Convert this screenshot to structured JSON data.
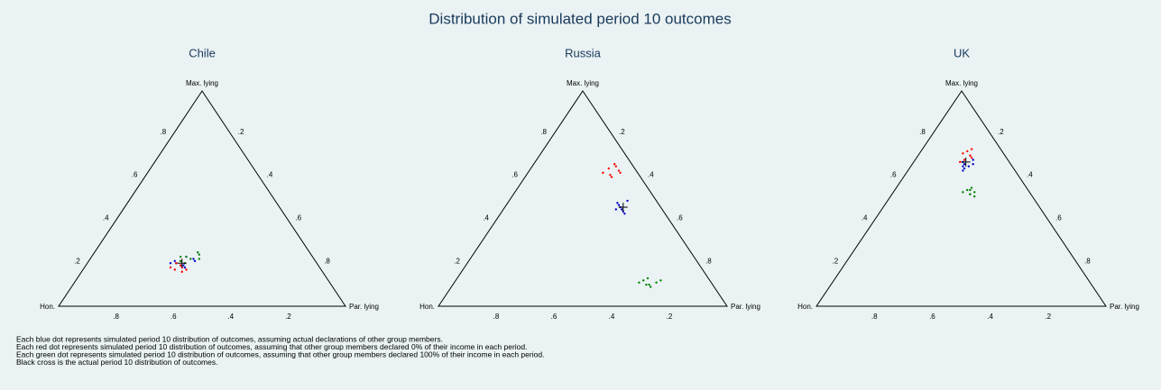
{
  "title": "Distribution of simulated period 10 outcomes",
  "vertex_labels": {
    "top": "Max. lying",
    "left": "Hon.",
    "right": "Par. lying"
  },
  "ticks": [
    {
      "value": 0.2,
      "label": ".2"
    },
    {
      "value": 0.4,
      "label": ".4"
    },
    {
      "value": 0.6,
      "label": ".6"
    },
    {
      "value": 0.8,
      "label": ".8"
    }
  ],
  "charts": [
    {
      "type": "ternary",
      "title": "Chile",
      "series": [
        {
          "color": "#0000cc",
          "par_lying": [
            0.3,
            0.34,
            0.36,
            0.31,
            0.33,
            0.35,
            0.29,
            0.37
          ],
          "max_lying": [
            0.21,
            0.19,
            0.22,
            0.2,
            0.23,
            0.18,
            0.2,
            0.21
          ]
        },
        {
          "color": "#ff0000",
          "par_lying": [
            0.32,
            0.34,
            0.31,
            0.35,
            0.33,
            0.3,
            0.36,
            0.32
          ],
          "max_lying": [
            0.17,
            0.18,
            0.2,
            0.16,
            0.19,
            0.18,
            0.17,
            0.21
          ]
        },
        {
          "color": "#008000",
          "par_lying": [
            0.33,
            0.35,
            0.37,
            0.32,
            0.36,
            0.34,
            0.38,
            0.31
          ],
          "max_lying": [
            0.23,
            0.22,
            0.24,
            0.21,
            0.25,
            0.2,
            0.22,
            0.23
          ]
        }
      ],
      "cross": {
        "par_lying": 0.33,
        "max_lying": 0.2
      }
    },
    {
      "type": "ternary",
      "title": "Russia",
      "series": [
        {
          "color": "#0000cc",
          "par_lying": [
            0.39,
            0.41,
            0.42,
            0.38,
            0.4,
            0.43,
            0.41,
            0.39
          ],
          "max_lying": [
            0.47,
            0.45,
            0.44,
            0.48,
            0.46,
            0.43,
            0.49,
            0.45
          ]
        },
        {
          "color": "#ff0000",
          "par_lying": [
            0.27,
            0.29,
            0.31,
            0.28,
            0.3,
            0.26,
            0.29,
            0.32
          ],
          "max_lying": [
            0.64,
            0.61,
            0.63,
            0.66,
            0.6,
            0.62,
            0.65,
            0.62
          ]
        },
        {
          "color": "#008000",
          "par_lying": [
            0.65,
            0.68,
            0.7,
            0.66,
            0.69,
            0.71,
            0.64,
            0.67
          ],
          "max_lying": [
            0.12,
            0.1,
            0.11,
            0.13,
            0.09,
            0.12,
            0.11,
            0.1
          ]
        }
      ],
      "cross": {
        "par_lying": 0.41,
        "max_lying": 0.46
      }
    },
    {
      "type": "ternary",
      "title": "UK",
      "series": [
        {
          "color": "#0000cc",
          "par_lying": [
            0.18,
            0.2,
            0.19,
            0.17,
            0.21,
            0.19,
            0.18,
            0.2
          ],
          "max_lying": [
            0.66,
            0.65,
            0.64,
            0.67,
            0.66,
            0.63,
            0.65,
            0.68
          ]
        },
        {
          "color": "#ff0000",
          "par_lying": [
            0.16,
            0.18,
            0.17,
            0.15,
            0.19,
            0.17,
            0.16,
            0.18
          ],
          "max_lying": [
            0.72,
            0.7,
            0.68,
            0.71,
            0.69,
            0.73,
            0.67,
            0.7
          ]
        },
        {
          "color": "#008000",
          "par_lying": [
            0.25,
            0.27,
            0.28,
            0.26,
            0.29,
            0.24,
            0.27,
            0.26
          ],
          "max_lying": [
            0.54,
            0.52,
            0.53,
            0.55,
            0.51,
            0.53,
            0.52,
            0.54
          ]
        }
      ],
      "cross": {
        "par_lying": 0.18,
        "max_lying": 0.67
      }
    }
  ],
  "notes": [
    "Each blue dot represents simulated period 10 distribution of outcomes, assuming actual declarations of other group members.",
    "Each red dot represents simulated period 10 distribution of outcomes, assuming that other group members declared 0% of their income in each period.",
    "Each green dot represents simulated period 10 distribution of outcomes, assuming that other group members declared 100% of their income in each period.",
    "Black cross is the actual period 10 distribution of outcomes."
  ]
}
